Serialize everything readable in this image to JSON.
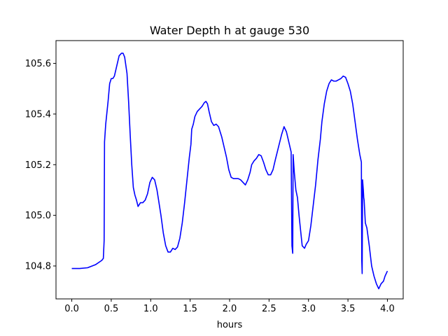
{
  "chart_data": {
    "type": "line",
    "title": "Water Depth h at gauge 530",
    "xlabel": "hours",
    "ylabel": "",
    "xlim": [
      -0.2,
      4.2
    ],
    "ylim": [
      104.67,
      105.69
    ],
    "xticks": [
      {
        "value": 0.0,
        "label": "0.0"
      },
      {
        "value": 0.5,
        "label": "0.5"
      },
      {
        "value": 1.0,
        "label": "1.0"
      },
      {
        "value": 1.5,
        "label": "1.5"
      },
      {
        "value": 2.0,
        "label": "2.0"
      },
      {
        "value": 2.5,
        "label": "2.5"
      },
      {
        "value": 3.0,
        "label": "3.0"
      },
      {
        "value": 3.5,
        "label": "3.5"
      },
      {
        "value": 4.0,
        "label": "4.0"
      }
    ],
    "yticks": [
      {
        "value": 104.8,
        "label": "104.8"
      },
      {
        "value": 105.0,
        "label": "105.0"
      },
      {
        "value": 105.2,
        "label": "105.2"
      },
      {
        "value": 105.4,
        "label": "105.4"
      },
      {
        "value": 105.6,
        "label": "105.6"
      }
    ],
    "grid": false,
    "series": [
      {
        "color": "#0000ff",
        "points": [
          [
            0.0,
            104.79
          ],
          [
            0.1,
            104.79
          ],
          [
            0.2,
            104.793
          ],
          [
            0.3,
            104.805
          ],
          [
            0.38,
            104.822
          ],
          [
            0.4,
            104.83
          ],
          [
            0.41,
            104.9
          ],
          [
            0.415,
            105.29
          ],
          [
            0.43,
            105.36
          ],
          [
            0.46,
            105.45
          ],
          [
            0.48,
            105.52
          ],
          [
            0.5,
            105.54
          ],
          [
            0.52,
            105.54
          ],
          [
            0.54,
            105.55
          ],
          [
            0.57,
            105.59
          ],
          [
            0.6,
            105.63
          ],
          [
            0.63,
            105.64
          ],
          [
            0.65,
            105.64
          ],
          [
            0.67,
            105.625
          ],
          [
            0.7,
            105.56
          ],
          [
            0.72,
            105.45
          ],
          [
            0.74,
            105.32
          ],
          [
            0.76,
            105.2
          ],
          [
            0.78,
            105.11
          ],
          [
            0.8,
            105.08
          ],
          [
            0.82,
            105.06
          ],
          [
            0.84,
            105.035
          ],
          [
            0.87,
            105.05
          ],
          [
            0.9,
            105.05
          ],
          [
            0.93,
            105.06
          ],
          [
            0.96,
            105.085
          ],
          [
            0.99,
            105.13
          ],
          [
            1.02,
            105.15
          ],
          [
            1.05,
            105.14
          ],
          [
            1.08,
            105.1
          ],
          [
            1.1,
            105.06
          ],
          [
            1.13,
            105.0
          ],
          [
            1.16,
            104.93
          ],
          [
            1.19,
            104.88
          ],
          [
            1.22,
            104.855
          ],
          [
            1.25,
            104.855
          ],
          [
            1.28,
            104.87
          ],
          [
            1.31,
            104.865
          ],
          [
            1.34,
            104.875
          ],
          [
            1.37,
            104.91
          ],
          [
            1.4,
            104.97
          ],
          [
            1.43,
            105.05
          ],
          [
            1.46,
            105.14
          ],
          [
            1.49,
            105.23
          ],
          [
            1.51,
            105.28
          ],
          [
            1.52,
            105.34
          ],
          [
            1.54,
            105.36
          ],
          [
            1.56,
            105.39
          ],
          [
            1.59,
            105.41
          ],
          [
            1.62,
            105.42
          ],
          [
            1.65,
            105.43
          ],
          [
            1.68,
            105.445
          ],
          [
            1.7,
            105.45
          ],
          [
            1.72,
            105.44
          ],
          [
            1.74,
            105.41
          ],
          [
            1.77,
            105.37
          ],
          [
            1.8,
            105.355
          ],
          [
            1.83,
            105.36
          ],
          [
            1.86,
            105.35
          ],
          [
            1.88,
            105.33
          ],
          [
            1.9,
            105.31
          ],
          [
            1.93,
            105.27
          ],
          [
            1.96,
            105.23
          ],
          [
            1.99,
            105.18
          ],
          [
            2.02,
            105.15
          ],
          [
            2.05,
            105.145
          ],
          [
            2.08,
            105.145
          ],
          [
            2.11,
            105.145
          ],
          [
            2.14,
            105.14
          ],
          [
            2.17,
            105.13
          ],
          [
            2.2,
            105.12
          ],
          [
            2.23,
            105.14
          ],
          [
            2.26,
            105.17
          ],
          [
            2.28,
            105.2
          ],
          [
            2.31,
            105.215
          ],
          [
            2.34,
            105.225
          ],
          [
            2.37,
            105.24
          ],
          [
            2.4,
            105.235
          ],
          [
            2.43,
            105.21
          ],
          [
            2.46,
            105.18
          ],
          [
            2.49,
            105.16
          ],
          [
            2.52,
            105.16
          ],
          [
            2.55,
            105.18
          ],
          [
            2.58,
            105.22
          ],
          [
            2.62,
            105.27
          ],
          [
            2.66,
            105.32
          ],
          [
            2.69,
            105.35
          ],
          [
            2.72,
            105.33
          ],
          [
            2.75,
            105.29
          ],
          [
            2.78,
            105.25
          ],
          [
            2.79,
            104.88
          ],
          [
            2.8,
            104.85
          ],
          [
            2.805,
            105.24
          ],
          [
            2.82,
            105.17
          ],
          [
            2.84,
            105.1
          ],
          [
            2.86,
            105.07
          ],
          [
            2.88,
            105.0
          ],
          [
            2.9,
            104.94
          ],
          [
            2.92,
            104.88
          ],
          [
            2.95,
            104.87
          ],
          [
            2.97,
            104.885
          ],
          [
            3.0,
            104.9
          ],
          [
            3.03,
            104.96
          ],
          [
            3.06,
            105.04
          ],
          [
            3.09,
            105.12
          ],
          [
            3.12,
            105.22
          ],
          [
            3.15,
            105.3
          ],
          [
            3.17,
            105.37
          ],
          [
            3.2,
            105.44
          ],
          [
            3.23,
            105.49
          ],
          [
            3.26,
            105.52
          ],
          [
            3.29,
            105.535
          ],
          [
            3.32,
            105.53
          ],
          [
            3.35,
            105.53
          ],
          [
            3.38,
            105.535
          ],
          [
            3.41,
            105.54
          ],
          [
            3.44,
            105.55
          ],
          [
            3.47,
            105.545
          ],
          [
            3.5,
            105.52
          ],
          [
            3.53,
            105.49
          ],
          [
            3.56,
            105.44
          ],
          [
            3.59,
            105.37
          ],
          [
            3.62,
            105.3
          ],
          [
            3.65,
            105.24
          ],
          [
            3.67,
            105.21
          ],
          [
            3.675,
            104.82
          ],
          [
            3.68,
            104.77
          ],
          [
            3.685,
            105.14
          ],
          [
            3.695,
            105.1
          ],
          [
            3.7,
            105.07
          ],
          [
            3.705,
            105.06
          ],
          [
            3.72,
            104.97
          ],
          [
            3.74,
            104.95
          ],
          [
            3.77,
            104.88
          ],
          [
            3.8,
            104.8
          ],
          [
            3.83,
            104.76
          ],
          [
            3.86,
            104.73
          ],
          [
            3.89,
            104.71
          ],
          [
            3.92,
            104.73
          ],
          [
            3.95,
            104.74
          ],
          [
            3.97,
            104.76
          ],
          [
            4.0,
            104.78
          ]
        ]
      }
    ]
  }
}
